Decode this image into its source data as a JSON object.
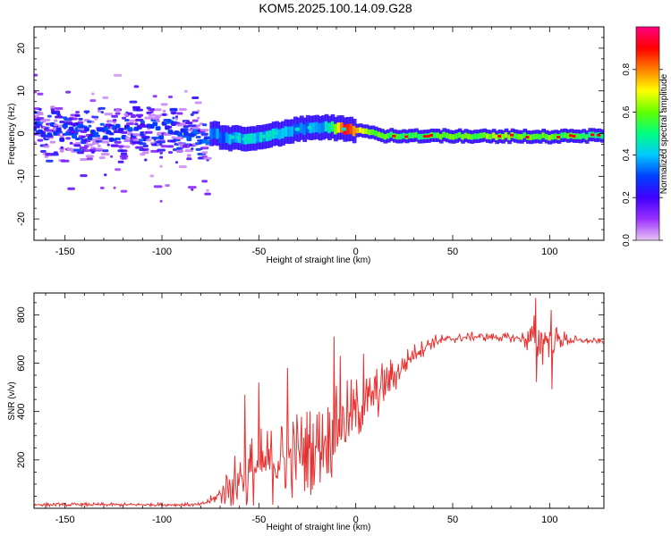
{
  "title": "KOM5.2025.100.14.09.G28",
  "chart_data": [
    {
      "type": "heatmap",
      "xlabel": "Height of straight line (km)",
      "ylabel": "Frequency (Hz)",
      "xlim": [
        -166,
        128
      ],
      "ylim": [
        -25,
        25
      ],
      "xticks": [
        -150,
        -100,
        -50,
        0,
        50,
        100
      ],
      "yticks": [
        -20,
        -10,
        0,
        10,
        20
      ],
      "colorbar": {
        "label": "Normalized spectral amplitude",
        "range": [
          0,
          1
        ],
        "ticks": [
          "0.0",
          "0.2",
          "0.4",
          "0.6",
          "0.8"
        ],
        "tick_values": [
          0,
          0.2,
          0.4,
          0.6,
          0.8
        ],
        "colormap": [
          "#e8c4f0",
          "#9b30ff",
          "#3f00ff",
          "#0040ff",
          "#00c8ff",
          "#00ff80",
          "#60ff00",
          "#ffff00",
          "#ff8000",
          "#ff0000",
          "#ff0080"
        ]
      },
      "ridge": [
        {
          "x": -166,
          "y": 0.5,
          "a": 0.25
        },
        {
          "x": -150,
          "y": 0.2,
          "a": 0.28
        },
        {
          "x": -130,
          "y": -0.5,
          "a": 0.27
        },
        {
          "x": -110,
          "y": 0.8,
          "a": 0.28
        },
        {
          "x": -90,
          "y": 0.3,
          "a": 0.27
        },
        {
          "x": -75,
          "y": -0.8,
          "a": 0.33
        },
        {
          "x": -60,
          "y": -1.2,
          "a": 0.38
        },
        {
          "x": -45,
          "y": -0.5,
          "a": 0.4
        },
        {
          "x": -30,
          "y": 1.0,
          "a": 0.35
        },
        {
          "x": -15,
          "y": 1.5,
          "a": 0.4
        },
        {
          "x": -5,
          "y": 1.0,
          "a": 0.95
        },
        {
          "x": 5,
          "y": 0.3,
          "a": 0.6
        },
        {
          "x": 15,
          "y": -0.5,
          "a": 0.55
        },
        {
          "x": 40,
          "y": -0.5,
          "a": 0.55
        },
        {
          "x": 70,
          "y": -0.6,
          "a": 0.6
        },
        {
          "x": 100,
          "y": -0.7,
          "a": 0.58
        },
        {
          "x": 128,
          "y": -0.5,
          "a": 0.5
        }
      ]
    },
    {
      "type": "line",
      "xlabel": "Height of straight line (km)",
      "ylabel": "SNR (v/v)",
      "xlim": [
        -166,
        128
      ],
      "ylim": [
        0,
        890
      ],
      "xticks": [
        -150,
        -100,
        -50,
        0,
        50,
        100
      ],
      "yticks": [
        200,
        400,
        600,
        800
      ],
      "series": [
        {
          "color": "#e83030",
          "baseline": [
            [
              -166,
              15
            ],
            [
              -80,
              15
            ],
            [
              -75,
              30
            ],
            [
              -70,
              60
            ],
            [
              -60,
              130
            ],
            [
              -45,
              180
            ],
            [
              -30,
              230
            ],
            [
              -20,
              260
            ],
            [
              -10,
              320
            ],
            [
              0,
              400
            ],
            [
              10,
              470
            ],
            [
              20,
              550
            ],
            [
              30,
              640
            ],
            [
              40,
              690
            ],
            [
              60,
              710
            ],
            [
              80,
              705
            ],
            [
              90,
              700
            ],
            [
              100,
              700
            ],
            [
              110,
              695
            ],
            [
              128,
              690
            ]
          ],
          "noise_amplitude": [
            [
              -166,
              8
            ],
            [
              -80,
              8
            ],
            [
              -72,
              30
            ],
            [
              -60,
              170
            ],
            [
              -45,
              180
            ],
            [
              -30,
              200
            ],
            [
              -10,
              190
            ],
            [
              0,
              160
            ],
            [
              15,
              110
            ],
            [
              30,
              45
            ],
            [
              50,
              20
            ],
            [
              85,
              20
            ],
            [
              90,
              90
            ],
            [
              95,
              150
            ],
            [
              100,
              80
            ],
            [
              105,
              50
            ],
            [
              115,
              15
            ],
            [
              128,
              12
            ]
          ],
          "peaks": [
            [
              -57,
              470
            ],
            [
              -50,
              520
            ],
            [
              -35,
              580
            ],
            [
              -11,
              710
            ],
            [
              -8,
              630
            ],
            [
              4,
              640
            ],
            [
              93,
              870
            ],
            [
              101,
              820
            ]
          ]
        }
      ]
    }
  ]
}
